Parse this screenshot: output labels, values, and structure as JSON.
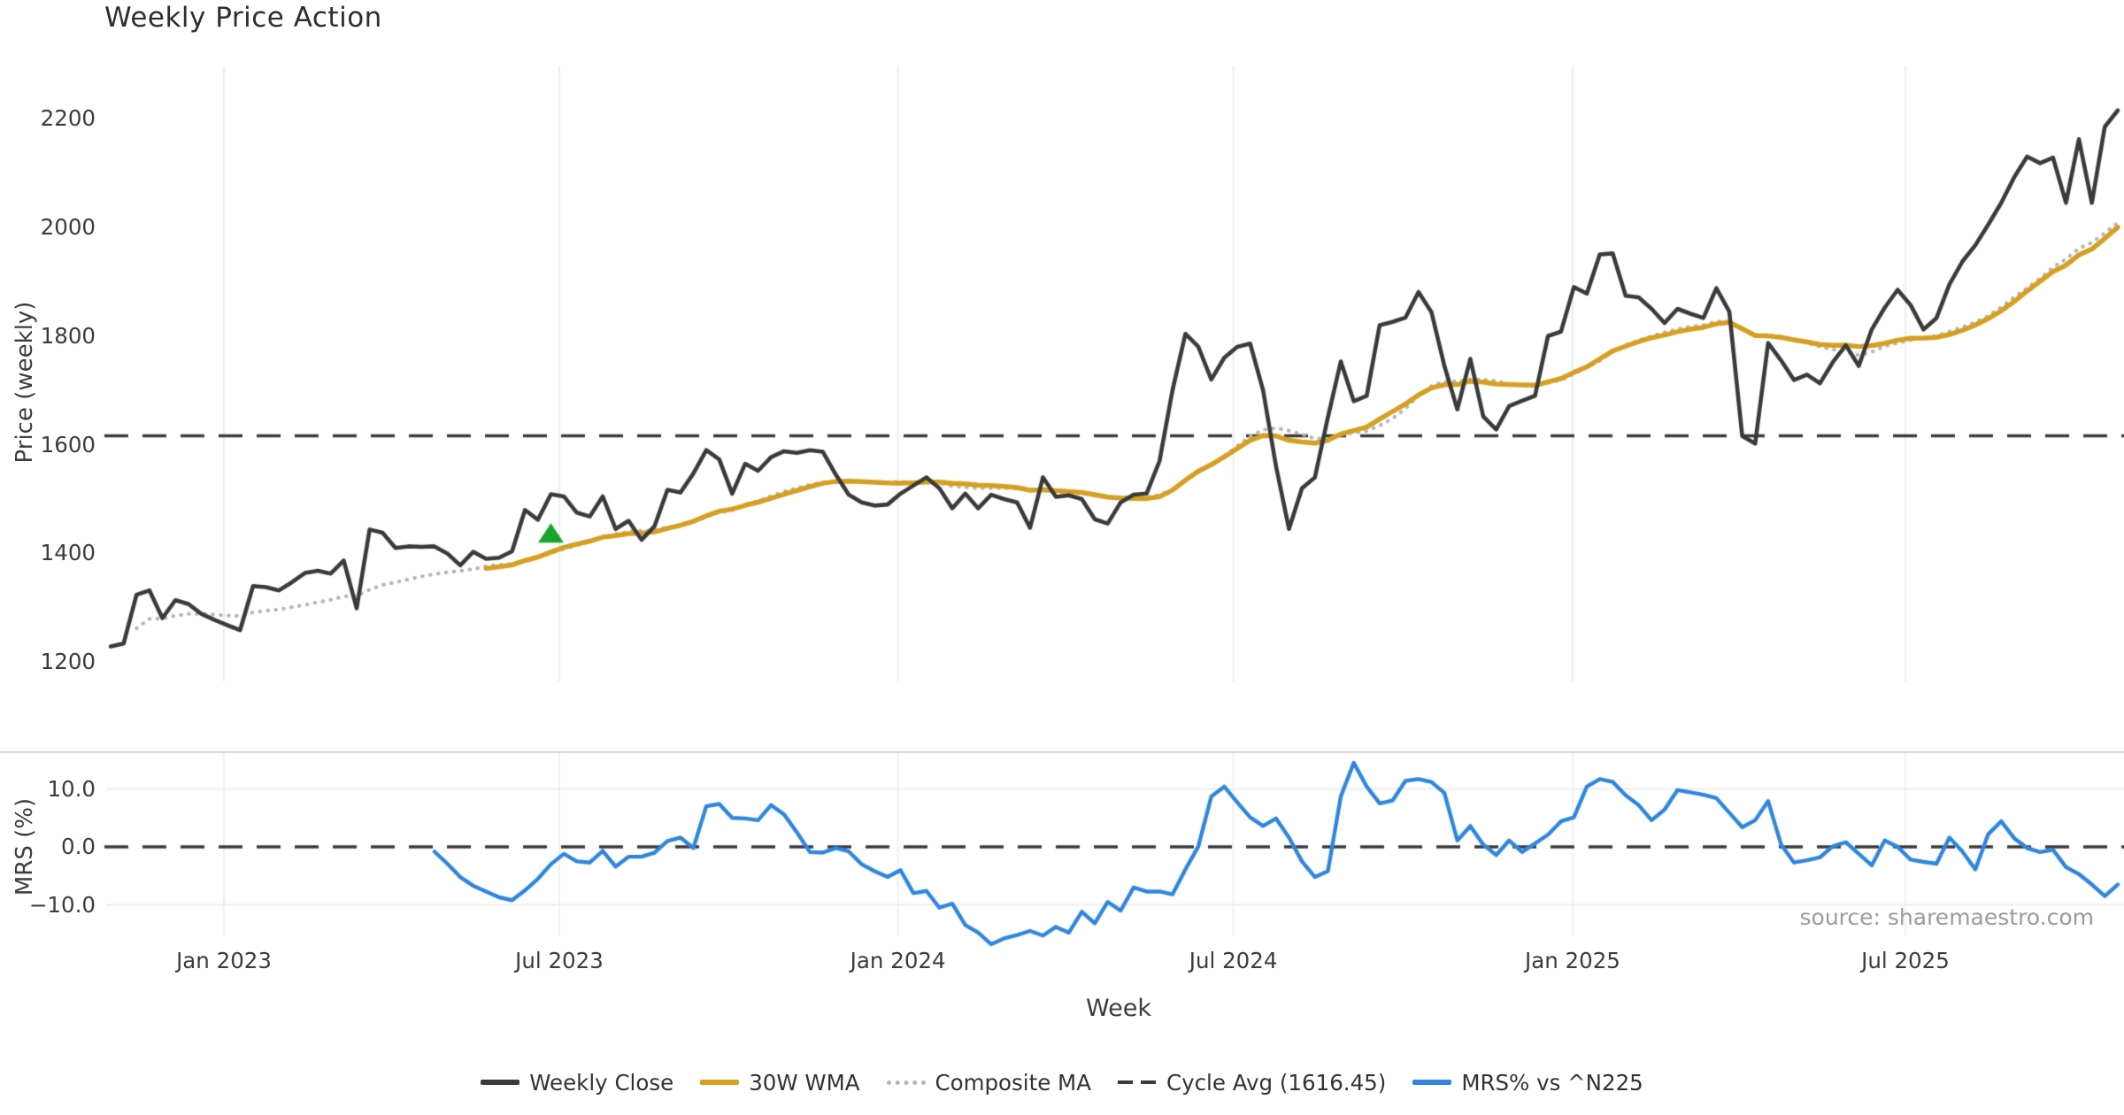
{
  "source_text": "source: sharemaestro.com",
  "chart_data": [
    {
      "type": "line",
      "title": "Weekly Price Action",
      "ylabel": "Price (weekly)",
      "grid": "vertical-only",
      "ylim": [
        1164,
        2296
      ],
      "x_axis": {
        "unit": "week-index",
        "tick_positions": [
          8.75,
          34.65,
          60.8,
          86.7,
          112.9,
          138.6
        ],
        "tick_labels": [
          "Jan 2023",
          "Jul 2023",
          "Jan 2024",
          "Jul 2024",
          "Jan 2025",
          "Jul 2025"
        ]
      },
      "y_ticks": [
        2200,
        2000,
        1800,
        1600,
        1400,
        1200
      ],
      "y_tick_labels": [
        "2200",
        "2000",
        "1800",
        "1600",
        "1400",
        "1200"
      ],
      "cycle_avg": 1616.45,
      "marker": {
        "shape": "triangle-up",
        "color": "#17a52b",
        "week_index": 34,
        "value": 1436
      },
      "series": [
        {
          "name": "Weekly Close",
          "color": "#3a3a3a",
          "style": "solid",
          "start_week_index": 0,
          "values": [
            1229,
            1234,
            1324,
            1332,
            1281,
            1314,
            1307,
            1289,
            1278,
            1268,
            1259,
            1340,
            1338,
            1332,
            1347,
            1364,
            1368,
            1363,
            1387,
            1299,
            1444,
            1438,
            1410,
            1413,
            1412,
            1413,
            1400,
            1378,
            1403,
            1390,
            1392,
            1404,
            1480,
            1462,
            1509,
            1505,
            1475,
            1468,
            1505,
            1445,
            1460,
            1425,
            1450,
            1517,
            1512,
            1547,
            1590,
            1573,
            1510,
            1565,
            1552,
            1577,
            1588,
            1585,
            1590,
            1587,
            1545,
            1508,
            1494,
            1488,
            1490,
            1510,
            1525,
            1540,
            1520,
            1483,
            1510,
            1483,
            1508,
            1500,
            1494,
            1447,
            1540,
            1504,
            1507,
            1500,
            1463,
            1455,
            1494,
            1508,
            1510,
            1570,
            1700,
            1804,
            1780,
            1720,
            1760,
            1780,
            1786,
            1700,
            1560,
            1445,
            1520,
            1540,
            1650,
            1753,
            1680,
            1690,
            1820,
            1826,
            1834,
            1881,
            1844,
            1745,
            1665,
            1758,
            1652,
            1628,
            1671,
            1681,
            1690,
            1800,
            1808,
            1890,
            1878,
            1950,
            1952,
            1874,
            1871,
            1850,
            1824,
            1850,
            1841,
            1833,
            1888,
            1845,
            1616,
            1602,
            1787,
            1755,
            1719,
            1729,
            1713,
            1752,
            1783,
            1745,
            1812,
            1852,
            1885,
            1857,
            1812,
            1833,
            1895,
            1937,
            1967,
            2005,
            2045,
            2092,
            2130,
            2118,
            2128,
            2045,
            2162,
            2045,
            2185,
            2215
          ]
        },
        {
          "name": "30W WMA",
          "color": "#d5a021",
          "style": "solid",
          "derived": "weighted_ma_30w_of_weekly_close"
        },
        {
          "name": "Composite MA",
          "color": "#b5b5b5",
          "style": "dotted",
          "derived": "mean_of_sma10_sma20_sma30_of_weekly_close"
        },
        {
          "name": "Cycle Avg (1616.45)",
          "color": "#3a3a3a",
          "style": "dashed",
          "value": 1616.45
        }
      ]
    },
    {
      "type": "line",
      "ylabel": "MRS (%)",
      "xlabel": "Week",
      "ylim": [
        -17.5,
        16.5
      ],
      "y_ticks": [
        10.0,
        0.0,
        -10.0
      ],
      "y_tick_labels": [
        "10.0",
        "0.0",
        "−10.0"
      ],
      "zero_line": {
        "style": "dashed",
        "color": "#3a3a3a",
        "value": 0.0
      },
      "series": [
        {
          "name": "MRS% vs ^N225",
          "color": "#2e86de",
          "style": "solid",
          "start_week_index": 25,
          "values": [
            -0.8,
            -2.9,
            -5.2,
            -6.7,
            -7.7,
            -8.7,
            -9.2,
            -7.5,
            -5.5,
            -3.0,
            -1.2,
            -2.5,
            -2.7,
            -0.7,
            -3.4,
            -1.7,
            -1.7,
            -1.0,
            1.0,
            1.6,
            -0.2,
            7.0,
            7.4,
            5.0,
            4.9,
            4.6,
            7.2,
            5.6,
            2.5,
            -0.9,
            -1.0,
            -0.2,
            -0.8,
            -3.0,
            -4.2,
            -5.2,
            -4.0,
            -8.0,
            -7.6,
            -10.5,
            -9.8,
            -13.5,
            -14.8,
            -16.8,
            -15.8,
            -15.2,
            -14.5,
            -15.3,
            -13.8,
            -14.8,
            -11.2,
            -13.2,
            -9.5,
            -11.0,
            -7.0,
            -7.7,
            -7.7,
            -8.2,
            -3.9,
            0.1,
            8.7,
            10.4,
            7.7,
            5.1,
            3.6,
            4.9,
            1.6,
            -2.5,
            -5.2,
            -4.2,
            8.7,
            14.5,
            10.4,
            7.5,
            8.0,
            11.4,
            11.7,
            11.2,
            9.3,
            1.1,
            3.6,
            0.4,
            -1.4,
            1.1,
            -0.9,
            0.6,
            2.1,
            4.4,
            5.1,
            10.4,
            11.7,
            11.2,
            8.9,
            7.2,
            4.6,
            6.4,
            9.8,
            9.4,
            9.0,
            8.4,
            5.9,
            3.4,
            4.6,
            7.9,
            0.4,
            -2.7,
            -2.3,
            -1.8,
            0.1,
            0.8,
            -1.2,
            -3.2,
            1.1,
            0.0,
            -2.2,
            -2.6,
            -2.9,
            1.6,
            -0.8,
            -3.9,
            2.2,
            4.4,
            1.5,
            -0.2,
            -0.9,
            -0.5,
            -3.5,
            -4.7,
            -6.5,
            -8.5,
            -6.5
          ]
        }
      ]
    }
  ]
}
